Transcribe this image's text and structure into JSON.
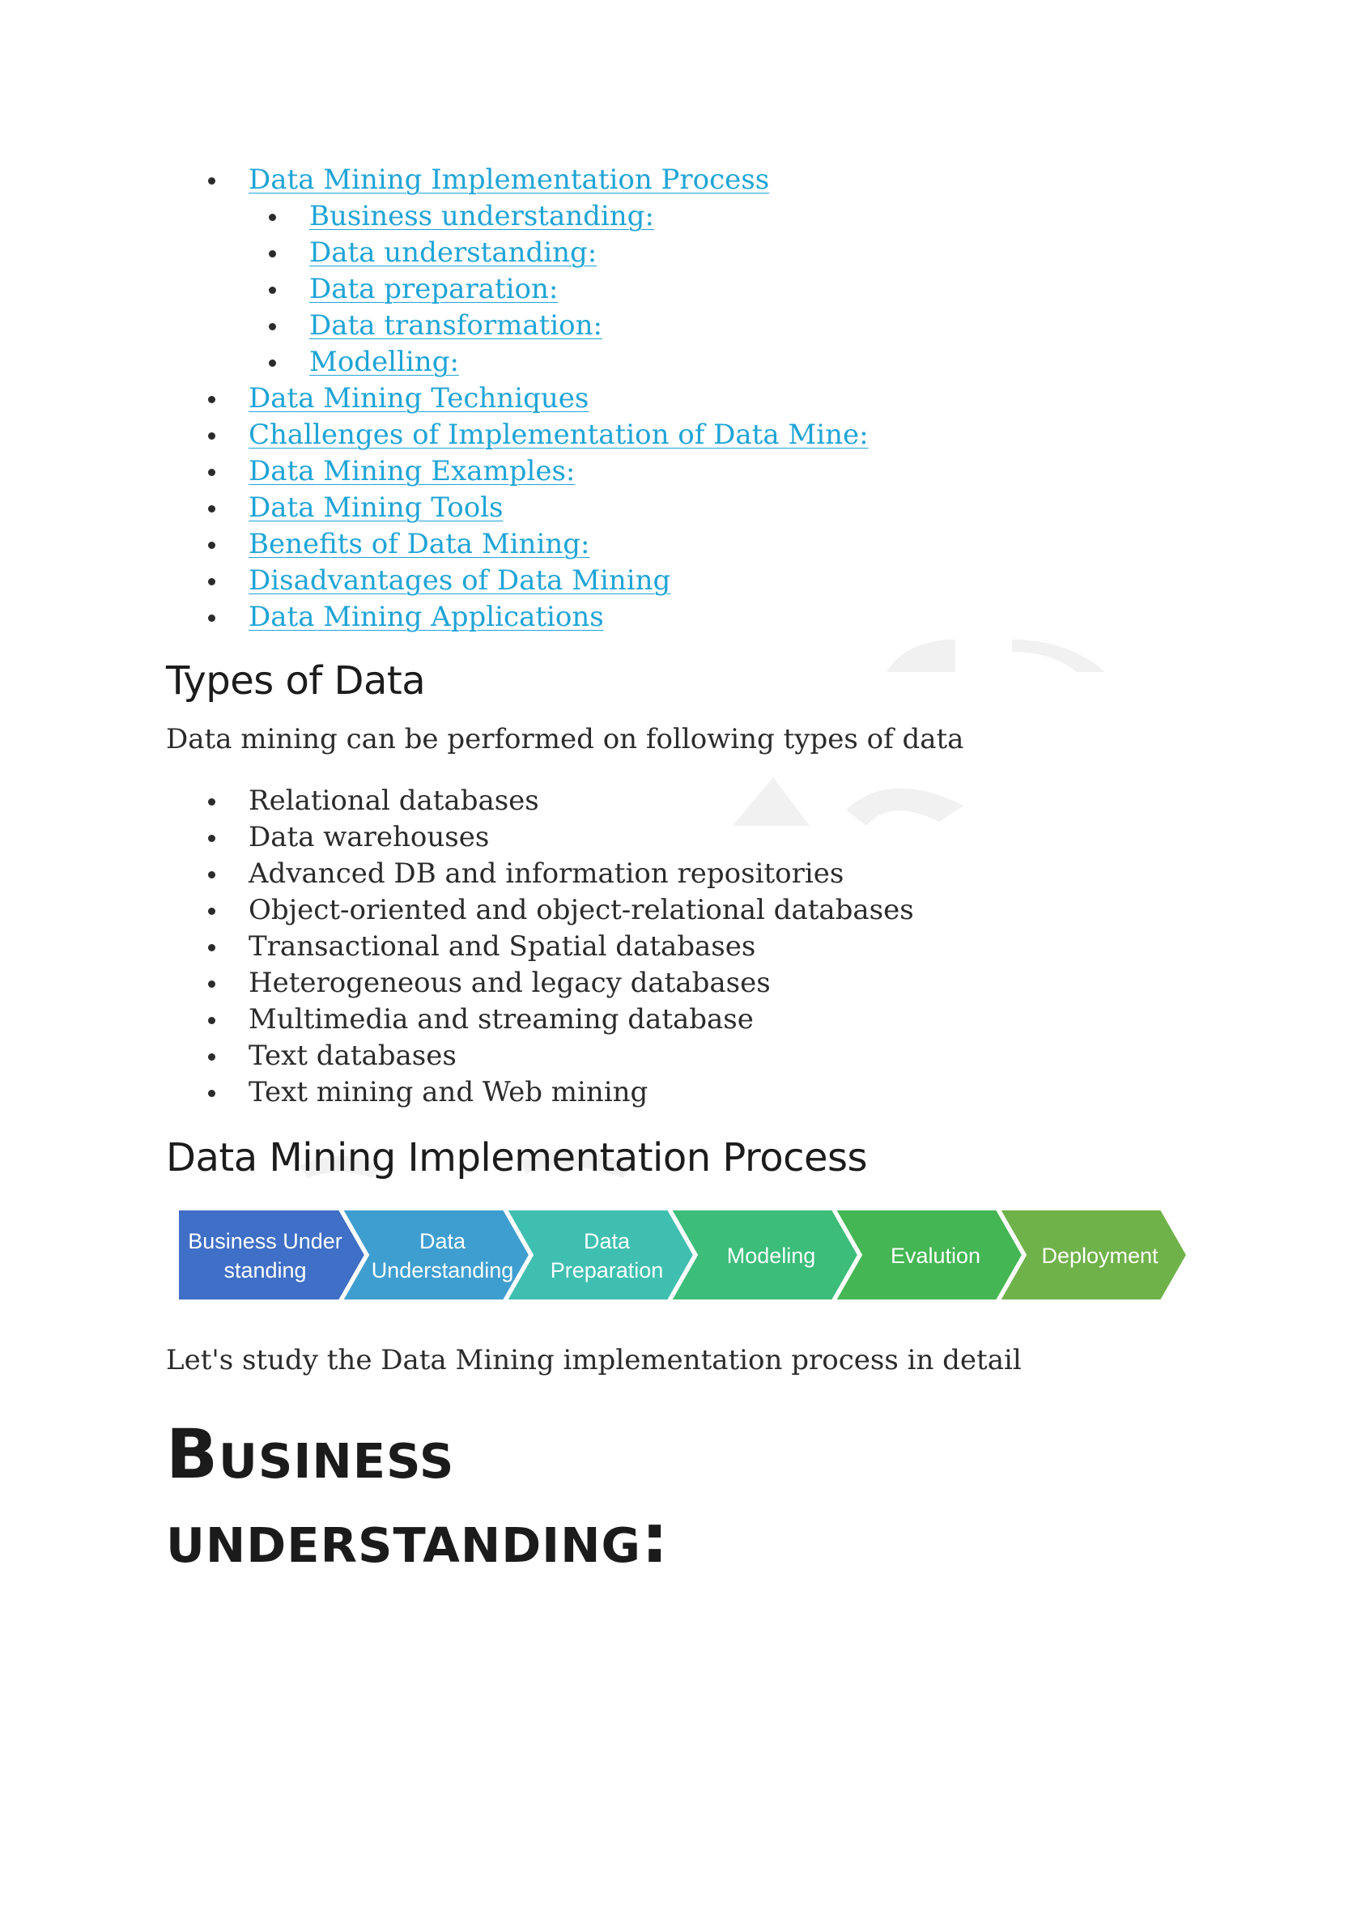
{
  "toc": [
    {
      "label": "Data Mining Implementation Process",
      "children": [
        "Business understanding:",
        "Data understanding:",
        "Data preparation:",
        "Data transformation:",
        "Modelling:"
      ]
    },
    {
      "label": "Data Mining Techniques"
    },
    {
      "label": "Challenges of Implementation of Data Mine:"
    },
    {
      "label": "Data Mining Examples:"
    },
    {
      "label": "Data Mining Tools"
    },
    {
      "label": "Benefits of Data Mining:"
    },
    {
      "label": "Disadvantages of Data Mining"
    },
    {
      "label": "Data Mining Applications"
    }
  ],
  "types_section": {
    "heading": "Types of Data",
    "intro": "Data mining can be performed on following types of data",
    "items": [
      "Relational databases",
      "Data warehouses",
      "Advanced DB and information repositories",
      "Object-oriented and object-relational databases",
      "Transactional and Spatial databases",
      "Heterogeneous and legacy databases",
      "Multimedia and streaming database",
      "Text databases",
      "Text mining and Web mining"
    ]
  },
  "process_section": {
    "heading": "Data Mining Implementation Process",
    "steps": [
      {
        "line1": "Business Under",
        "line2": "standing",
        "color": "#3f6fc6"
      },
      {
        "line1": "Data",
        "line2": "Understanding",
        "color": "#3f9ed0"
      },
      {
        "line1": "Data",
        "line2": "Preparation",
        "color": "#3fbfb0"
      },
      {
        "line1": "Modeling",
        "line2": "",
        "color": "#3cbd7a"
      },
      {
        "line1": "Evalution",
        "line2": "",
        "color": "#44b653"
      },
      {
        "line1": "Deployment",
        "line2": "",
        "color": "#6fb24a"
      }
    ],
    "caption": "Let's study the Data Mining implementation process in detail"
  },
  "business_section": {
    "heading_line1": "Business",
    "heading_line2": "understanding:"
  }
}
